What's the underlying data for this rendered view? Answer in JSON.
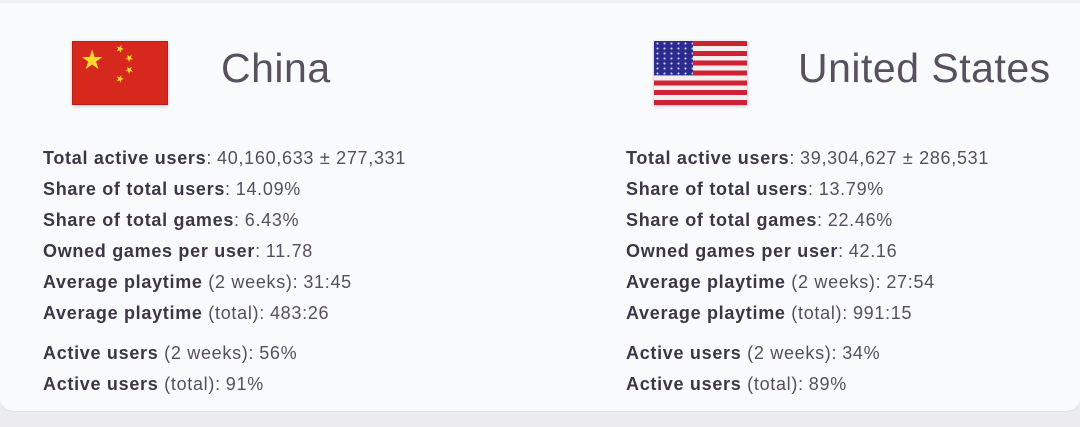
{
  "colors": {
    "card_bg": "#f9fafc",
    "label_text": "#3c3646",
    "value_text": "#554f60",
    "title_text": "#57515f",
    "china_flag_red": "#d7281d",
    "china_flag_star_yellow": "#fadb2a",
    "us_flag_red": "#ce2234",
    "us_flag_blue": "#2d2c8e"
  },
  "panels": [
    {
      "country": "China",
      "flag": "china-flag",
      "stats": [
        {
          "bold": "Total active users",
          "rest": ":",
          "value": "40,160,633 ± 277,331"
        },
        {
          "bold": "Share of total users",
          "rest": ":",
          "value": "14.09%"
        },
        {
          "bold": "Share of total games",
          "rest": ":",
          "value": "6.43%"
        },
        {
          "bold": "Owned games per user",
          "rest": ":",
          "value": "11.78"
        },
        {
          "bold": "Average playtime",
          "rest": " (2 weeks):",
          "value": "31:45"
        },
        {
          "bold": "Average playtime",
          "rest": " (total):",
          "value": "483:26"
        }
      ],
      "active": [
        {
          "bold": "Active users",
          "rest": " (2 weeks):",
          "value": "56%"
        },
        {
          "bold": "Active users",
          "rest": " (total):",
          "value": "91%"
        }
      ]
    },
    {
      "country": "United States",
      "flag": "us-flag",
      "stats": [
        {
          "bold": "Total active users",
          "rest": ":",
          "value": "39,304,627 ± 286,531"
        },
        {
          "bold": "Share of total users",
          "rest": ":",
          "value": "13.79%"
        },
        {
          "bold": "Share of total games",
          "rest": ":",
          "value": "22.46%"
        },
        {
          "bold": "Owned games per user",
          "rest": ":",
          "value": "42.16"
        },
        {
          "bold": "Average playtime",
          "rest": " (2 weeks):",
          "value": "27:54"
        },
        {
          "bold": "Average playtime",
          "rest": " (total):",
          "value": "991:15"
        }
      ],
      "active": [
        {
          "bold": "Active users",
          "rest": " (2 weeks):",
          "value": "34%"
        },
        {
          "bold": "Active users",
          "rest": " (total):",
          "value": "89%"
        }
      ]
    }
  ],
  "flag_star": "★"
}
